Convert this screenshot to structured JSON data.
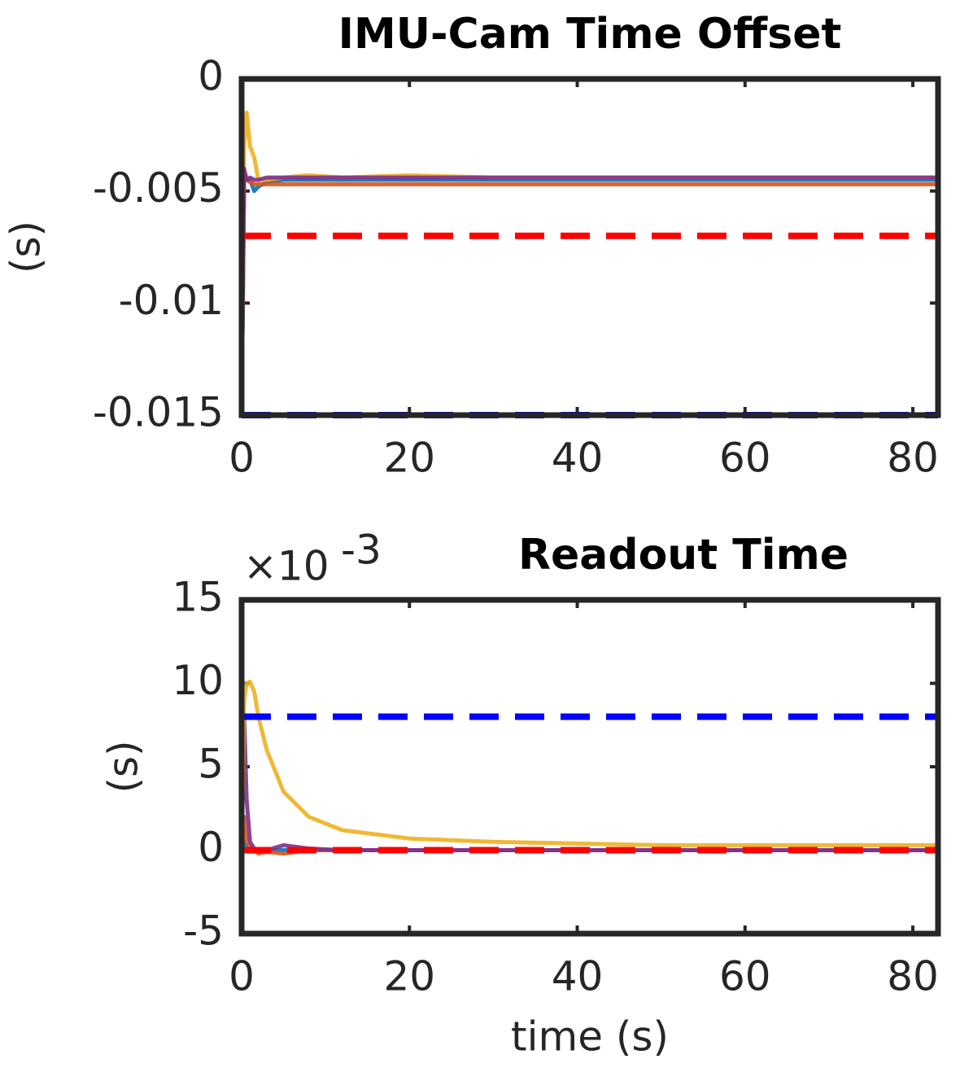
{
  "chart_data": [
    {
      "type": "line",
      "title": "IMU-Cam Time Offset",
      "ylabel": "(s)",
      "xlim": [
        0,
        83
      ],
      "xticks": [
        0,
        20,
        40,
        60,
        80
      ],
      "ylim": [
        -0.015,
        0
      ],
      "yticks": [
        0,
        -0.005,
        -0.01,
        -0.015
      ],
      "x": [
        0,
        0.3,
        0.6,
        1,
        1.5,
        2,
        3,
        5,
        8,
        12,
        20,
        30,
        40,
        50,
        60,
        70,
        83
      ],
      "series": [
        {
          "color": "#0072BD",
          "values": [
            -0.015,
            -0.0045,
            -0.0045,
            -0.0045,
            -0.005,
            -0.0048,
            -0.0046,
            -0.0045,
            -0.0045,
            -0.0045,
            -0.0045,
            -0.0045,
            -0.0045,
            -0.0045,
            -0.0045,
            -0.0045,
            -0.0045
          ]
        },
        {
          "color": "#EDB120",
          "values": [
            -0.015,
            -0.003,
            -0.0015,
            -0.003,
            -0.0035,
            -0.0045,
            -0.0045,
            -0.0044,
            -0.0043,
            -0.0044,
            -0.0043,
            -0.0044,
            -0.0044,
            -0.0044,
            -0.0044,
            -0.0044,
            -0.0044
          ]
        },
        {
          "color": "#D95319",
          "values": [
            -0.015,
            -0.0042,
            -0.0045,
            -0.0046,
            -0.0047,
            -0.0047,
            -0.0047,
            -0.0047,
            -0.0047,
            -0.0047,
            -0.0047,
            -0.0047,
            -0.0047,
            -0.0047,
            -0.0047,
            -0.0047,
            -0.0047
          ]
        },
        {
          "color": "#7E2F8E",
          "values": [
            -0.015,
            -0.004,
            -0.0045,
            -0.0044,
            -0.0045,
            -0.0045,
            -0.0044,
            -0.0044,
            -0.0044,
            -0.0044,
            -0.0044,
            -0.0044,
            -0.0044,
            -0.0044,
            -0.0044,
            -0.0044,
            -0.0044
          ]
        }
      ],
      "hlines": [
        {
          "value": -0.007,
          "color": "#ff0000"
        },
        {
          "value": -0.015,
          "color": "#0000ff"
        }
      ]
    },
    {
      "type": "line",
      "title": "Readout Time",
      "ylabel": "(s)",
      "xlabel": "time (s)",
      "multiplier": {
        "base": "×10",
        "exponent": "-3"
      },
      "xlim": [
        0,
        83
      ],
      "xticks": [
        0,
        20,
        40,
        60,
        80
      ],
      "ylim": [
        -5,
        15
      ],
      "yticks": [
        15,
        10,
        5,
        0,
        -5
      ],
      "x": [
        0,
        0.3,
        0.6,
        1,
        1.5,
        2,
        3,
        5,
        8,
        12,
        20,
        30,
        40,
        50,
        60,
        70,
        83
      ],
      "series": [
        {
          "color": "#0072BD",
          "values": [
            0,
            0.5,
            0.2,
            0,
            0,
            0,
            0,
            0,
            0,
            0,
            0,
            0,
            0,
            0,
            0,
            0,
            0
          ]
        },
        {
          "color": "#D95319",
          "values": [
            0,
            2,
            0.5,
            0.2,
            0,
            -0.2,
            -0.1,
            -0.2,
            0,
            0,
            0,
            0,
            0,
            0,
            0,
            0,
            0
          ]
        },
        {
          "color": "#7E2F8E",
          "values": [
            0,
            8,
            3,
            0.5,
            0.1,
            0,
            0,
            0.3,
            0.1,
            0,
            0,
            0,
            0,
            0,
            0,
            0,
            0
          ]
        },
        {
          "color": "#EDB120",
          "values": [
            0,
            9,
            10,
            10.1,
            9.5,
            8,
            6,
            3.5,
            2,
            1.2,
            0.7,
            0.5,
            0.4,
            0.3,
            0.3,
            0.3,
            0.3
          ]
        }
      ],
      "hlines": [
        {
          "value": 8,
          "color": "#0000ff"
        },
        {
          "value": 0,
          "color": "#ff0000"
        }
      ]
    }
  ]
}
